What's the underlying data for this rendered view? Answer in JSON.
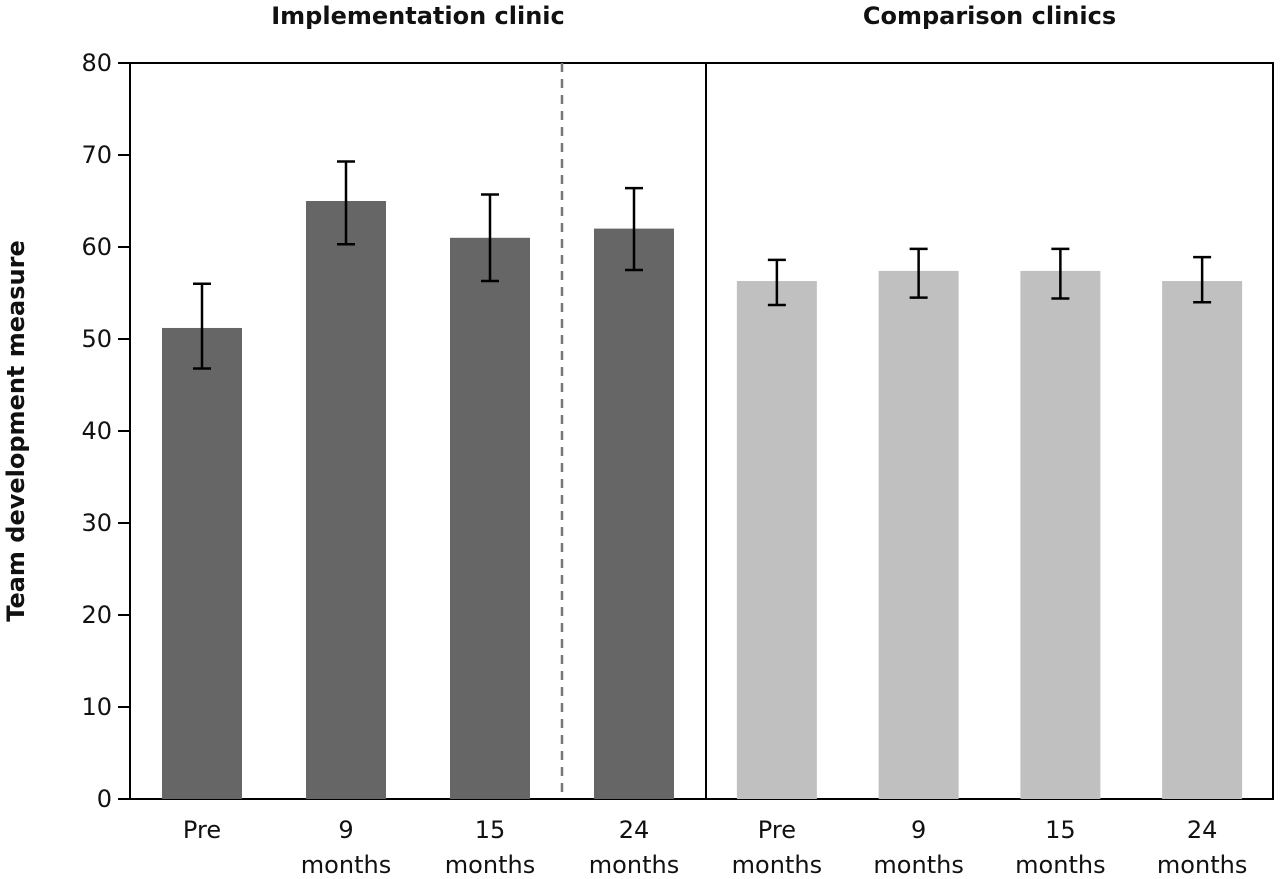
{
  "chart_data": {
    "type": "bar",
    "ylabel": "Team development measure",
    "ylim": [
      0,
      80
    ],
    "yticks": [
      0,
      10,
      20,
      30,
      40,
      50,
      60,
      70,
      80
    ],
    "grid": false,
    "panels": [
      {
        "title": "Implementation clinic",
        "color": "#666666",
        "categories": [
          {
            "line1": "Pre",
            "line2": ""
          },
          {
            "line1": "9",
            "line2": "months"
          },
          {
            "line1": "15",
            "line2": "months"
          },
          {
            "line1": "24",
            "line2": "months"
          }
        ],
        "values": [
          51.2,
          65.0,
          61.0,
          62.0
        ],
        "error_low": [
          46.8,
          60.3,
          56.3,
          57.5
        ],
        "error_high": [
          56.0,
          69.3,
          65.7,
          66.4
        ],
        "dashed_divider_after_index": 2
      },
      {
        "title": "Comparison clinics",
        "color": "#c0c0c0",
        "categories": [
          {
            "line1": "Pre",
            "line2": "months"
          },
          {
            "line1": "9",
            "line2": "months"
          },
          {
            "line1": "15",
            "line2": "months"
          },
          {
            "line1": "24",
            "line2": "months"
          }
        ],
        "values": [
          56.3,
          57.4,
          57.4,
          56.3
        ],
        "error_low": [
          53.7,
          54.5,
          54.4,
          54.0
        ],
        "error_high": [
          58.6,
          59.8,
          59.8,
          58.9
        ]
      }
    ]
  }
}
